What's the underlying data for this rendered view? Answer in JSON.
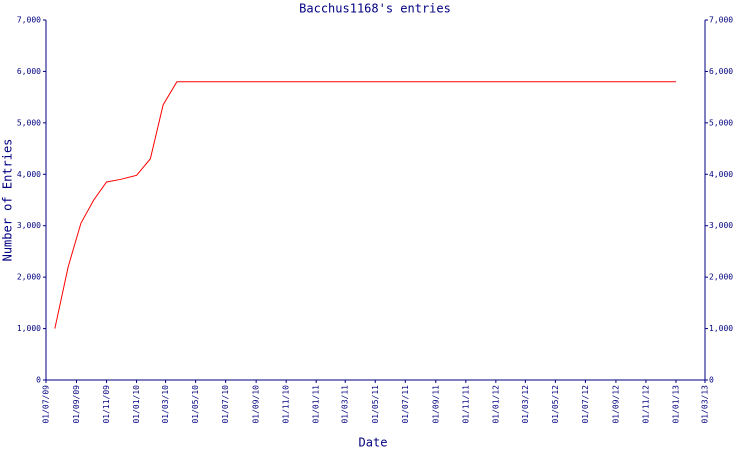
{
  "chart_data": {
    "type": "line",
    "title": "Bacchus1168's entries",
    "x_label": "Date",
    "y_label": "Number of Entries",
    "x": [
      "2009-07-19",
      "2009-08-15",
      "2009-09-10",
      "2009-10-06",
      "2009-11-01",
      "2009-11-29",
      "2010-01-01",
      "2010-01-29",
      "2010-02-24",
      "2010-03-24",
      "2013-01-01"
    ],
    "values": [
      1000,
      2200,
      3050,
      3500,
      3850,
      3900,
      3980,
      4300,
      5350,
      5800,
      5800
    ],
    "color": "#ff0000",
    "axis_color": "#000080",
    "xlim": [
      "2009-07-01",
      "2013-03-01"
    ],
    "xticks": [
      {
        "value": "2009-07-01",
        "label": "01/07/09"
      },
      {
        "value": "2009-09-01",
        "label": "01/09/09"
      },
      {
        "value": "2009-11-01",
        "label": "01/11/09"
      },
      {
        "value": "2010-01-01",
        "label": "01/01/10"
      },
      {
        "value": "2010-03-01",
        "label": "01/03/10"
      },
      {
        "value": "2010-05-01",
        "label": "01/05/10"
      },
      {
        "value": "2010-07-01",
        "label": "01/07/10"
      },
      {
        "value": "2010-09-01",
        "label": "01/09/10"
      },
      {
        "value": "2010-11-01",
        "label": "01/11/10"
      },
      {
        "value": "2011-01-01",
        "label": "01/01/11"
      },
      {
        "value": "2011-03-01",
        "label": "01/03/11"
      },
      {
        "value": "2011-05-01",
        "label": "01/05/11"
      },
      {
        "value": "2011-07-01",
        "label": "01/07/11"
      },
      {
        "value": "2011-09-01",
        "label": "01/09/11"
      },
      {
        "value": "2011-11-01",
        "label": "01/11/11"
      },
      {
        "value": "2012-01-01",
        "label": "01/01/12"
      },
      {
        "value": "2012-03-01",
        "label": "01/03/12"
      },
      {
        "value": "2012-05-01",
        "label": "01/05/12"
      },
      {
        "value": "2012-07-01",
        "label": "01/07/12"
      },
      {
        "value": "2012-09-01",
        "label": "01/09/12"
      },
      {
        "value": "2012-11-01",
        "label": "01/11/12"
      },
      {
        "value": "2013-01-01",
        "label": "01/01/13"
      },
      {
        "value": "2013-03-01",
        "label": "01/03/13"
      }
    ],
    "ylim": [
      0,
      7000
    ],
    "yticks": [
      0,
      {
        "value": 1000,
        "label": "1,000"
      },
      {
        "value": 2000,
        "label": "2,000"
      },
      {
        "value": 3000,
        "label": "3,000"
      },
      {
        "value": 4000,
        "label": "4,000"
      },
      {
        "value": 5000,
        "label": "5,000"
      },
      {
        "value": 6000,
        "label": "6,000"
      },
      {
        "value": 7000,
        "label": "7,000"
      }
    ],
    "grid": false
  }
}
